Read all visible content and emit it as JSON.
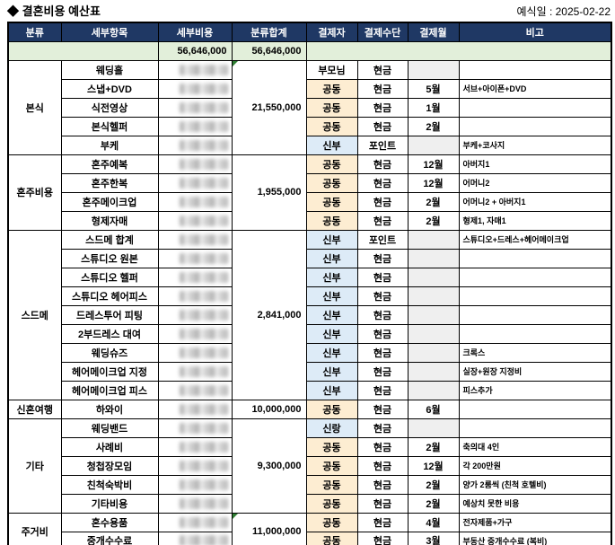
{
  "page": {
    "title": "◆ 결혼비용 예산표",
    "wedding_date_label": "예식일 : 2025-02-22"
  },
  "colors": {
    "header_bg": "#1F3864",
    "header_text": "#FFFFFF",
    "total_row_bg": "#E2EFDA",
    "joint_payer_bg": "#FDEDD2",
    "bride_groom_payer_bg": "#DDEBF7",
    "empty_month_bg": "#EFEFEF",
    "error_indicator": "#2E7D32",
    "border": "#000000"
  },
  "table": {
    "headers": [
      "분류",
      "세부항목",
      "세부비용",
      "분류합계",
      "결제자",
      "결제수단",
      "결제월",
      "비고"
    ],
    "total_row": {
      "detail_cost": "56,646,000",
      "category_total": "56,646,000"
    },
    "groups": [
      {
        "name": "본식",
        "total": "21,550,000",
        "error_indicator": true,
        "rows": [
          {
            "item": "웨딩홀",
            "cost_redacted": true,
            "payer": "부모님",
            "payer_type": "parents",
            "method": "현금",
            "month": "",
            "note": ""
          },
          {
            "item": "스냅+DVD",
            "cost_redacted": true,
            "payer": "공동",
            "payer_type": "joint",
            "method": "현금",
            "month": "5월",
            "note": "서브+아이폰+DVD"
          },
          {
            "item": "식전영상",
            "cost_redacted": true,
            "payer": "공동",
            "payer_type": "joint",
            "method": "현금",
            "month": "1월",
            "note": ""
          },
          {
            "item": "본식헬퍼",
            "cost_redacted": true,
            "payer": "공동",
            "payer_type": "joint",
            "method": "현금",
            "month": "2월",
            "note": ""
          },
          {
            "item": "부케",
            "cost_redacted": true,
            "payer": "신부",
            "payer_type": "bride",
            "method": "포인트",
            "month": "",
            "note": "부케+코사지"
          }
        ]
      },
      {
        "name": "혼주비용",
        "total": "1,955,000",
        "error_indicator": false,
        "rows": [
          {
            "item": "혼주예복",
            "cost_redacted": true,
            "payer": "공동",
            "payer_type": "joint",
            "method": "현금",
            "month": "12월",
            "note": "아버지1"
          },
          {
            "item": "혼주한복",
            "cost_redacted": true,
            "payer": "공동",
            "payer_type": "joint",
            "method": "현금",
            "month": "12월",
            "note": "어머니2"
          },
          {
            "item": "혼주메이크업",
            "cost_redacted": true,
            "payer": "공동",
            "payer_type": "joint",
            "method": "현금",
            "month": "2월",
            "note": "어머니2 + 아버지1"
          },
          {
            "item": "형제자매",
            "cost_redacted": true,
            "payer": "공동",
            "payer_type": "joint",
            "method": "현금",
            "month": "2월",
            "note": "형제1, 자매1"
          }
        ]
      },
      {
        "name": "스드메",
        "total": "2,841,000",
        "error_indicator": false,
        "rows": [
          {
            "item": "스드메 합계",
            "cost_redacted": true,
            "payer": "신부",
            "payer_type": "bride",
            "method": "포인트",
            "month": "",
            "note": "스튜디오+드레스+헤어메이크업"
          },
          {
            "item": "스튜디오 원본",
            "cost_redacted": true,
            "payer": "신부",
            "payer_type": "bride",
            "method": "현금",
            "month": "",
            "note": ""
          },
          {
            "item": "스튜디오 헬퍼",
            "cost_redacted": true,
            "payer": "신부",
            "payer_type": "bride",
            "method": "현금",
            "month": "",
            "note": ""
          },
          {
            "item": "스튜디오 헤어피스",
            "cost_redacted": true,
            "payer": "신부",
            "payer_type": "bride",
            "method": "현금",
            "month": "",
            "note": ""
          },
          {
            "item": "드레스투어 피팅",
            "cost_redacted": true,
            "payer": "신부",
            "payer_type": "bride",
            "method": "현금",
            "month": "",
            "note": ""
          },
          {
            "item": "2부드레스 대여",
            "cost_redacted": true,
            "payer": "신부",
            "payer_type": "bride",
            "method": "현금",
            "month": "",
            "note": ""
          },
          {
            "item": "웨딩슈즈",
            "cost_redacted": true,
            "payer": "신부",
            "payer_type": "bride",
            "method": "현금",
            "month": "",
            "note": "크록스"
          },
          {
            "item": "헤어메이크업 지정",
            "cost_redacted": true,
            "payer": "신부",
            "payer_type": "bride",
            "method": "현금",
            "month": "",
            "note": "실장+원장 지정비"
          },
          {
            "item": "헤어메이크업 피스",
            "cost_redacted": true,
            "payer": "신부",
            "payer_type": "bride",
            "method": "현금",
            "month": "",
            "note": "피스추가"
          }
        ]
      },
      {
        "name": "신혼여행",
        "total": "10,000,000",
        "error_indicator": false,
        "rows": [
          {
            "item": "하와이",
            "cost_redacted": true,
            "payer": "공동",
            "payer_type": "joint",
            "method": "현금",
            "month": "6월",
            "note": ""
          }
        ]
      },
      {
        "name": "기타",
        "total": "9,300,000",
        "error_indicator": false,
        "rows": [
          {
            "item": "웨딩밴드",
            "cost_redacted": true,
            "payer": "신랑",
            "payer_type": "groom",
            "method": "현금",
            "month": "",
            "note": ""
          },
          {
            "item": "사례비",
            "cost_redacted": true,
            "payer": "공동",
            "payer_type": "joint",
            "method": "현금",
            "month": "2월",
            "note": "축의대 4인"
          },
          {
            "item": "청첩장모임",
            "cost_redacted": true,
            "payer": "공동",
            "payer_type": "joint",
            "method": "현금",
            "month": "12월",
            "note": "각 200만원"
          },
          {
            "item": "친척숙박비",
            "cost_redacted": true,
            "payer": "공동",
            "payer_type": "joint",
            "method": "현금",
            "month": "2월",
            "note": "양가 2룸씩 (친척 호텔비)"
          },
          {
            "item": "기타비용",
            "cost_redacted": true,
            "payer": "공동",
            "payer_type": "joint",
            "method": "현금",
            "month": "2월",
            "note": "예상치 못한 비용"
          }
        ]
      },
      {
        "name": "주거비",
        "total": "11,000,000",
        "error_indicator": true,
        "rows": [
          {
            "item": "혼수용품",
            "cost_redacted": true,
            "payer": "공동",
            "payer_type": "joint",
            "method": "현금",
            "month": "4월",
            "note": "전자제품+가구"
          },
          {
            "item": "중개수수료",
            "cost_redacted": true,
            "payer": "공동",
            "payer_type": "joint",
            "method": "현금",
            "month": "3월",
            "note": "부동산 중개수수료 (복비)"
          }
        ]
      }
    ]
  }
}
